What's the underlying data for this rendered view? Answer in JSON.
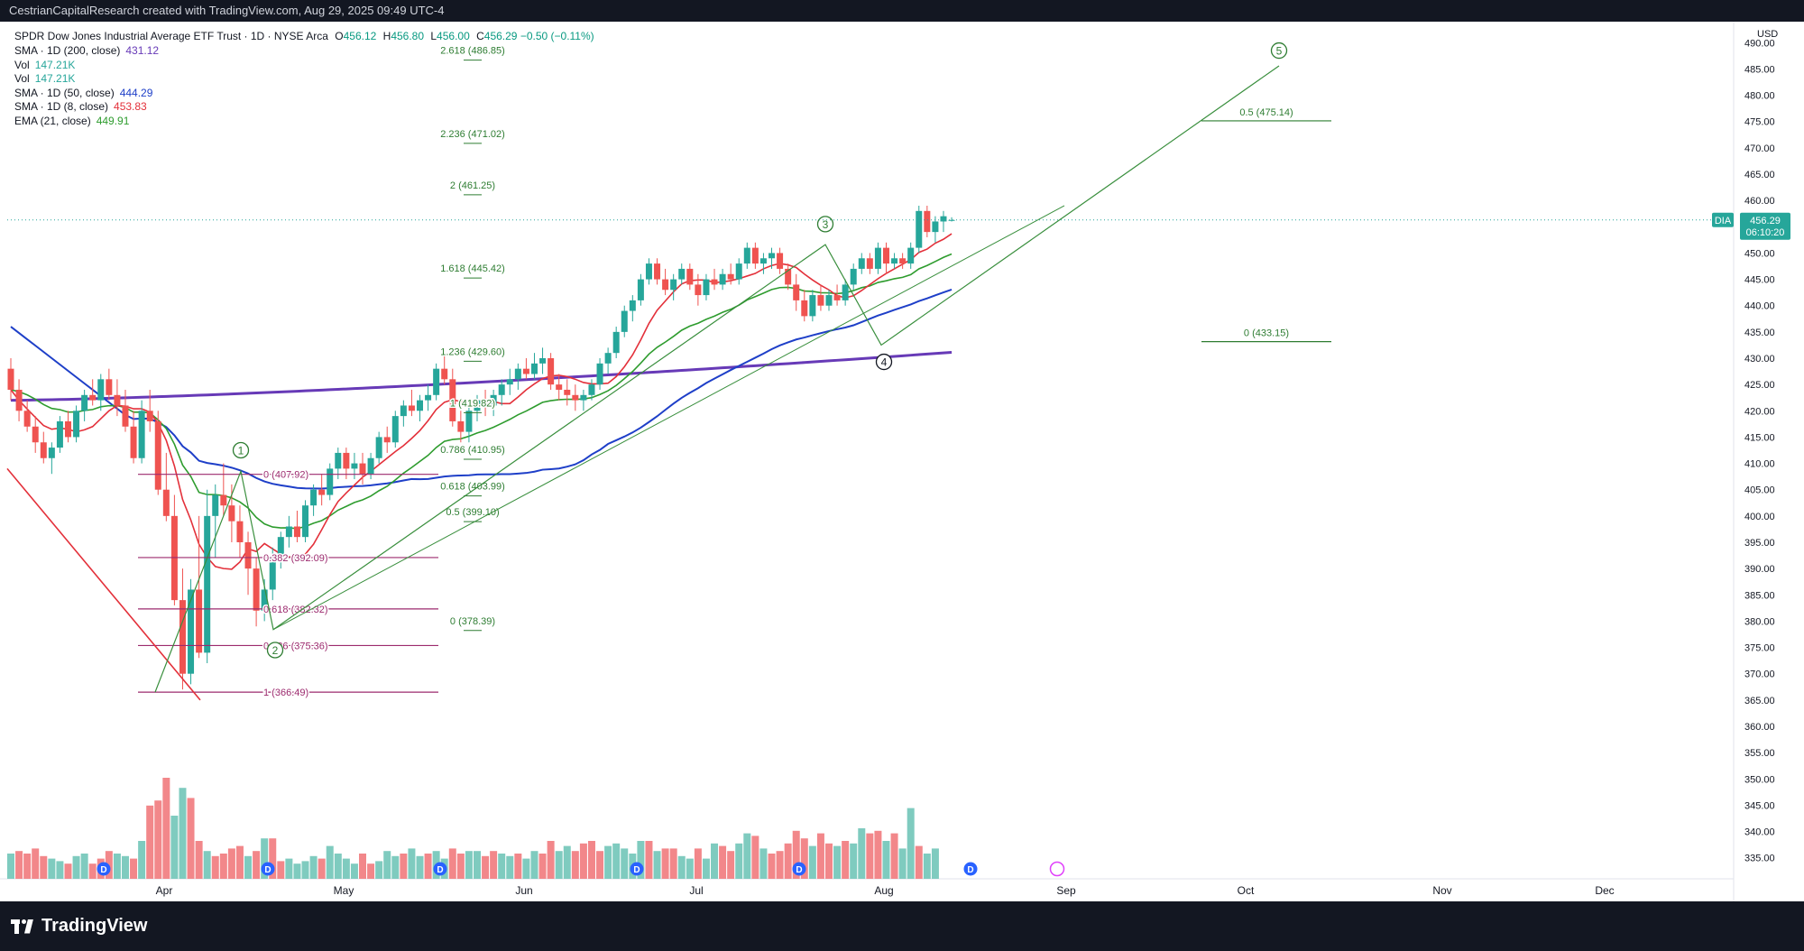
{
  "header": {
    "attribution": "CestrianCapitalResearch created with TradingView.com, Aug 29, 2025 09:49 UTC-4"
  },
  "symbol": {
    "name": "SPDR Dow Jones Industrial Average ETF Trust · 1D · NYSE Arca",
    "o_label": "O",
    "o": "456.12",
    "h_label": "H",
    "h": "456.80",
    "l_label": "L",
    "l": "456.00",
    "c_label": "C",
    "c": "456.29",
    "change": "−0.50 (−0.11%)"
  },
  "indicators": [
    {
      "label": "SMA · 1D (200, close)",
      "value": "431.12",
      "color": "#673ab7"
    },
    {
      "label": "Vol",
      "value": "147.21K",
      "color": "#26a69a"
    },
    {
      "label": "Vol",
      "value": "147.21K",
      "color": "#26a69a"
    },
    {
      "label": "SMA · 1D (50, close)",
      "value": "444.29",
      "color": "#1e3fc8"
    },
    {
      "label": "SMA · 1D (8, close)",
      "value": "453.83",
      "color": "#e3303a"
    },
    {
      "label": "EMA (21, close)",
      "value": "449.91",
      "color": "#2e9c2e"
    }
  ],
  "price_axis": {
    "currency": "USD",
    "ticks": [
      "490.00",
      "485.00",
      "480.00",
      "475.00",
      "470.00",
      "465.00",
      "460.00",
      "455.00",
      "450.00",
      "445.00",
      "440.00",
      "435.00",
      "430.00",
      "425.00",
      "420.00",
      "415.00",
      "410.00",
      "405.00",
      "400.00",
      "395.00",
      "390.00",
      "385.00",
      "380.00",
      "375.00",
      "370.00",
      "365.00",
      "360.00",
      "355.00",
      "350.00",
      "345.00",
      "340.00",
      "335.00"
    ],
    "last_price_label": "DIA",
    "last_price": "456.29",
    "countdown": "06:10:20"
  },
  "time_axis": {
    "labels": [
      "Apr",
      "May",
      "Jun",
      "Jul",
      "Aug",
      "Sep",
      "Oct",
      "Nov",
      "Dec"
    ]
  },
  "fib_retracement": [
    {
      "text": "0 (407.92)",
      "level": 407.92
    },
    {
      "text": "0.382 (392.09)",
      "level": 392.09
    },
    {
      "text": "0.618 (382.32)",
      "level": 382.32
    },
    {
      "text": "0.786 (375.36)",
      "level": 375.36
    },
    {
      "text": "1 (366.49)",
      "level": 366.49
    }
  ],
  "fib_extension": [
    {
      "text": "2.618 (486.85)",
      "level": 486.85
    },
    {
      "text": "2.236 (471.02)",
      "level": 471.02
    },
    {
      "text": "2 (461.25)",
      "level": 461.25
    },
    {
      "text": "1.618 (445.42)",
      "level": 445.42
    },
    {
      "text": "1.236 (429.60)",
      "level": 429.6
    },
    {
      "text": "1 (419.82)",
      "level": 419.82
    },
    {
      "text": "0.786 (410.95)",
      "level": 410.95
    },
    {
      "text": "0.618 (403.99)",
      "level": 403.99
    },
    {
      "text": "0.5 (399.10)",
      "level": 399.1
    },
    {
      "text": "0 (378.39)",
      "level": 378.39
    }
  ],
  "fib_projection": [
    {
      "text": "0.5 (475.14)",
      "level": 475.14
    },
    {
      "text": "0 (433.15)",
      "level": 433.15
    }
  ],
  "waves": [
    "1",
    "2",
    "3",
    "4",
    "5"
  ],
  "dividend_marker": "D",
  "colors": {
    "up": "#26a69a",
    "down": "#ef5350",
    "sma200": "#673ab7",
    "sma50": "#1e3fc8",
    "sma8": "#e3303a",
    "ema21": "#2e9c2e",
    "fib_retracement": "#9c2a6e",
    "fib_extension": "#2e7d32",
    "wave_line": "#388e3c",
    "down_trend": "#e3303a"
  },
  "chart_data": {
    "type": "candlestick",
    "x": "trading days, Mar 2025 – Aug 29 2025",
    "ylim": [
      331,
      494
    ],
    "candles": [
      [
        428,
        430,
        422,
        424
      ],
      [
        424,
        426,
        418,
        420
      ],
      [
        420,
        422,
        416,
        417
      ],
      [
        417,
        419,
        412,
        414
      ],
      [
        414,
        416,
        410,
        411
      ],
      [
        411,
        414,
        408,
        413
      ],
      [
        413,
        419,
        412,
        418
      ],
      [
        418,
        420,
        414,
        415
      ],
      [
        415,
        421,
        414,
        420
      ],
      [
        420,
        424,
        418,
        423
      ],
      [
        423,
        426,
        421,
        422
      ],
      [
        422,
        427,
        420,
        426
      ],
      [
        426,
        428,
        422,
        423
      ],
      [
        423,
        426,
        419,
        421
      ],
      [
        421,
        424,
        416,
        417
      ],
      [
        417,
        420,
        410,
        411
      ],
      [
        411,
        422,
        410,
        420
      ],
      [
        420,
        424,
        416,
        418
      ],
      [
        418,
        420,
        404,
        405
      ],
      [
        405,
        412,
        399,
        400
      ],
      [
        400,
        404,
        383,
        384
      ],
      [
        384,
        390,
        367,
        370
      ],
      [
        370,
        388,
        368,
        386
      ],
      [
        386,
        400,
        373,
        374
      ],
      [
        374,
        405,
        372,
        400
      ],
      [
        400,
        406,
        392,
        404
      ],
      [
        404,
        410,
        400,
        402
      ],
      [
        402,
        406,
        395,
        399
      ],
      [
        399,
        402,
        392,
        395
      ],
      [
        395,
        397,
        385,
        390
      ],
      [
        390,
        392,
        379,
        382
      ],
      [
        382,
        388,
        380,
        386
      ],
      [
        386,
        394,
        384,
        392
      ],
      [
        392,
        397,
        390,
        396
      ],
      [
        396,
        400,
        394,
        398
      ],
      [
        398,
        401,
        395,
        396
      ],
      [
        396,
        403,
        395,
        402
      ],
      [
        402,
        406,
        400,
        405
      ],
      [
        405,
        408,
        402,
        404
      ],
      [
        404,
        410,
        403,
        409
      ],
      [
        409,
        413,
        407,
        412
      ],
      [
        412,
        413,
        407,
        409
      ],
      [
        409,
        412,
        407,
        410
      ],
      [
        410,
        412,
        406,
        408
      ],
      [
        408,
        412,
        407,
        411
      ],
      [
        411,
        416,
        410,
        415
      ],
      [
        415,
        417,
        412,
        414
      ],
      [
        414,
        420,
        413,
        419
      ],
      [
        419,
        422,
        417,
        421
      ],
      [
        421,
        424,
        419,
        420
      ],
      [
        420,
        423,
        418,
        422
      ],
      [
        422,
        425,
        420,
        423
      ],
      [
        423,
        429,
        422,
        428
      ],
      [
        428,
        431,
        425,
        426
      ],
      [
        426,
        428,
        417,
        418
      ],
      [
        418,
        420,
        414,
        416
      ],
      [
        416,
        421,
        414,
        420
      ],
      [
        420,
        423,
        418,
        422
      ],
      [
        422,
        424,
        419,
        421
      ],
      [
        421,
        424,
        419,
        423
      ],
      [
        423,
        426,
        421,
        425
      ],
      [
        425,
        428,
        423,
        426
      ],
      [
        426,
        429,
        424,
        428
      ],
      [
        428,
        430,
        426,
        427
      ],
      [
        427,
        431,
        426,
        429
      ],
      [
        429,
        432,
        427,
        430
      ],
      [
        430,
        431,
        424,
        425
      ],
      [
        425,
        427,
        422,
        424
      ],
      [
        424,
        426,
        421,
        423
      ],
      [
        423,
        425,
        420,
        422
      ],
      [
        422,
        424,
        420,
        423
      ],
      [
        423,
        426,
        422,
        425
      ],
      [
        425,
        430,
        424,
        429
      ],
      [
        429,
        432,
        427,
        431
      ],
      [
        431,
        436,
        430,
        435
      ],
      [
        435,
        440,
        434,
        439
      ],
      [
        439,
        442,
        437,
        441
      ],
      [
        441,
        446,
        440,
        445
      ],
      [
        445,
        449,
        444,
        448
      ],
      [
        448,
        449,
        444,
        445
      ],
      [
        445,
        447,
        442,
        443
      ],
      [
        443,
        446,
        441,
        445
      ],
      [
        445,
        448,
        444,
        447
      ],
      [
        447,
        448,
        443,
        444
      ],
      [
        444,
        446,
        440,
        442
      ],
      [
        442,
        446,
        441,
        445
      ],
      [
        445,
        447,
        443,
        444
      ],
      [
        444,
        447,
        443,
        446
      ],
      [
        446,
        448,
        444,
        445
      ],
      [
        445,
        449,
        444,
        448
      ],
      [
        448,
        452,
        447,
        451
      ],
      [
        451,
        452,
        447,
        448
      ],
      [
        448,
        450,
        446,
        449
      ],
      [
        449,
        451,
        447,
        450
      ],
      [
        450,
        451,
        446,
        447
      ],
      [
        447,
        448,
        443,
        444
      ],
      [
        444,
        446,
        439,
        441
      ],
      [
        441,
        443,
        437,
        438
      ],
      [
        438,
        443,
        437,
        442
      ],
      [
        442,
        444,
        439,
        440
      ],
      [
        440,
        443,
        439,
        442
      ],
      [
        442,
        444,
        440,
        441
      ],
      [
        441,
        445,
        440,
        444
      ],
      [
        444,
        448,
        443,
        447
      ],
      [
        447,
        450,
        446,
        449
      ],
      [
        449,
        450,
        446,
        447
      ],
      [
        447,
        452,
        446,
        451
      ],
      [
        451,
        452,
        446,
        448
      ],
      [
        448,
        450,
        447,
        449
      ],
      [
        449,
        450,
        447,
        448
      ],
      [
        448,
        452,
        447,
        451
      ],
      [
        451,
        459,
        450,
        458
      ],
      [
        458,
        459,
        453,
        454
      ],
      [
        454,
        457,
        452,
        456
      ],
      [
        456,
        458,
        454,
        457
      ],
      [
        456.12,
        456.8,
        456.0,
        456.29
      ]
    ],
    "volume": [
      [
        1.0,
        1
      ],
      [
        1.1,
        0
      ],
      [
        1.0,
        0
      ],
      [
        1.2,
        0
      ],
      [
        0.9,
        0
      ],
      [
        0.8,
        1
      ],
      [
        0.7,
        1
      ],
      [
        0.6,
        0
      ],
      [
        0.9,
        1
      ],
      [
        1.0,
        1
      ],
      [
        0.6,
        0
      ],
      [
        0.8,
        0
      ],
      [
        1.1,
        0
      ],
      [
        1.0,
        1
      ],
      [
        0.9,
        1
      ],
      [
        0.8,
        0
      ],
      [
        1.5,
        1
      ],
      [
        2.9,
        0
      ],
      [
        3.1,
        0
      ],
      [
        4.0,
        0
      ],
      [
        2.5,
        1
      ],
      [
        3.6,
        1
      ],
      [
        3.2,
        0
      ],
      [
        1.5,
        0
      ],
      [
        1.1,
        1
      ],
      [
        0.9,
        0
      ],
      [
        1.0,
        0
      ],
      [
        1.2,
        0
      ],
      [
        1.3,
        0
      ],
      [
        0.9,
        1
      ],
      [
        1.1,
        0
      ],
      [
        1.6,
        1
      ],
      [
        1.6,
        0
      ],
      [
        0.7,
        0
      ],
      [
        0.8,
        1
      ],
      [
        0.6,
        1
      ],
      [
        0.7,
        1
      ],
      [
        0.9,
        1
      ],
      [
        0.8,
        0
      ],
      [
        1.3,
        1
      ],
      [
        1.0,
        1
      ],
      [
        0.8,
        1
      ],
      [
        0.6,
        1
      ],
      [
        1.0,
        0
      ],
      [
        0.6,
        0
      ],
      [
        0.7,
        1
      ],
      [
        1.1,
        1
      ],
      [
        0.9,
        1
      ],
      [
        1.0,
        0
      ],
      [
        1.2,
        1
      ],
      [
        0.9,
        1
      ],
      [
        1.0,
        0
      ],
      [
        1.1,
        1
      ],
      [
        0.8,
        1
      ],
      [
        1.2,
        0
      ],
      [
        1.0,
        0
      ],
      [
        1.1,
        1
      ],
      [
        1.1,
        1
      ],
      [
        0.9,
        0
      ],
      [
        1.1,
        0
      ],
      [
        1.0,
        1
      ],
      [
        0.9,
        1
      ],
      [
        1.0,
        0
      ],
      [
        0.8,
        1
      ],
      [
        1.1,
        1
      ],
      [
        1.0,
        0
      ],
      [
        1.5,
        0
      ],
      [
        1.1,
        1
      ],
      [
        1.3,
        1
      ],
      [
        1.1,
        0
      ],
      [
        1.4,
        0
      ],
      [
        1.5,
        0
      ],
      [
        1.1,
        0
      ],
      [
        1.3,
        1
      ],
      [
        1.4,
        1
      ],
      [
        1.2,
        1
      ],
      [
        1.0,
        1
      ],
      [
        1.5,
        1
      ],
      [
        1.5,
        0
      ],
      [
        1.1,
        1
      ],
      [
        1.2,
        0
      ],
      [
        1.2,
        0
      ],
      [
        0.9,
        1
      ],
      [
        0.8,
        1
      ],
      [
        1.2,
        0
      ],
      [
        0.8,
        1
      ],
      [
        1.4,
        1
      ],
      [
        1.3,
        0
      ],
      [
        1.1,
        0
      ],
      [
        1.4,
        1
      ],
      [
        1.8,
        1
      ],
      [
        1.7,
        0
      ],
      [
        1.2,
        1
      ],
      [
        1.0,
        0
      ],
      [
        1.1,
        0
      ],
      [
        1.4,
        0
      ],
      [
        1.9,
        0
      ],
      [
        1.6,
        0
      ],
      [
        1.3,
        1
      ],
      [
        1.8,
        0
      ],
      [
        1.4,
        0
      ],
      [
        1.3,
        1
      ],
      [
        1.5,
        0
      ],
      [
        1.4,
        1
      ],
      [
        2.0,
        1
      ],
      [
        1.8,
        0
      ],
      [
        1.9,
        0
      ],
      [
        1.5,
        1
      ],
      [
        1.8,
        0
      ],
      [
        1.2,
        1
      ],
      [
        2.8,
        1
      ],
      [
        1.3,
        0
      ],
      [
        1.0,
        1
      ],
      [
        1.2,
        1
      ]
    ]
  }
}
